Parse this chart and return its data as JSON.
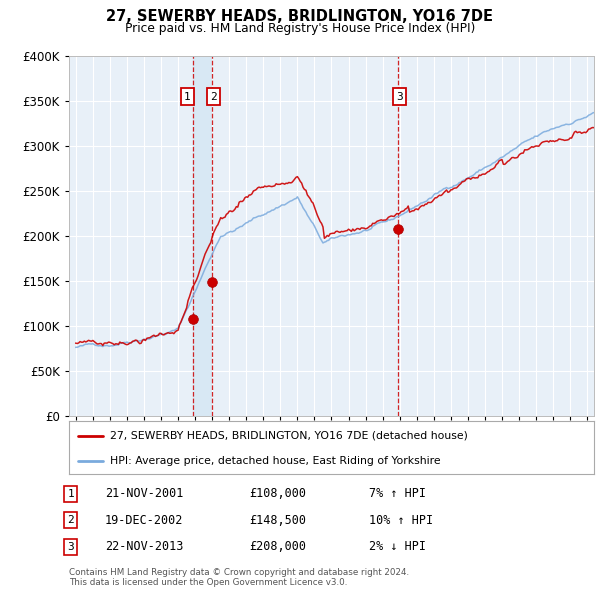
{
  "title": "27, SEWERBY HEADS, BRIDLINGTON, YO16 7DE",
  "subtitle": "Price paid vs. HM Land Registry's House Price Index (HPI)",
  "legend_line1": "27, SEWERBY HEADS, BRIDLINGTON, YO16 7DE (detached house)",
  "legend_line2": "HPI: Average price, detached house, East Riding of Yorkshire",
  "table_rows": [
    {
      "num": 1,
      "date": "21-NOV-2001",
      "price": "£108,000",
      "change": "7% ↑ HPI"
    },
    {
      "num": 2,
      "date": "19-DEC-2002",
      "price": "£148,500",
      "change": "10% ↑ HPI"
    },
    {
      "num": 3,
      "date": "22-NOV-2013",
      "price": "£208,000",
      "change": "2% ↓ HPI"
    }
  ],
  "footnote1": "Contains HM Land Registry data © Crown copyright and database right 2024.",
  "footnote2": "This data is licensed under the Open Government Licence v3.0.",
  "background_color": "#ffffff",
  "plot_bg_color": "#e8f0f8",
  "grid_color": "#d0dce8",
  "sale1_date": 2001.89,
  "sale1_price": 108000,
  "sale2_date": 2002.96,
  "sale2_price": 148500,
  "sale3_date": 2013.89,
  "sale3_price": 208000,
  "vspan1_start": 2001.89,
  "vspan1_end": 2002.96,
  "vline1": 2001.89,
  "vline2": 2002.96,
  "vline3": 2013.89,
  "ylim": [
    0,
    400000
  ],
  "xlim_start": 1994.6,
  "xlim_end": 2025.4,
  "red_color": "#cc0000",
  "blue_color": "#7aaadd",
  "vspan_color": "#d8e8f4",
  "vline_color": "#cc0000",
  "yticks": [
    0,
    50000,
    100000,
    150000,
    200000,
    250000,
    300000,
    350000,
    400000
  ]
}
